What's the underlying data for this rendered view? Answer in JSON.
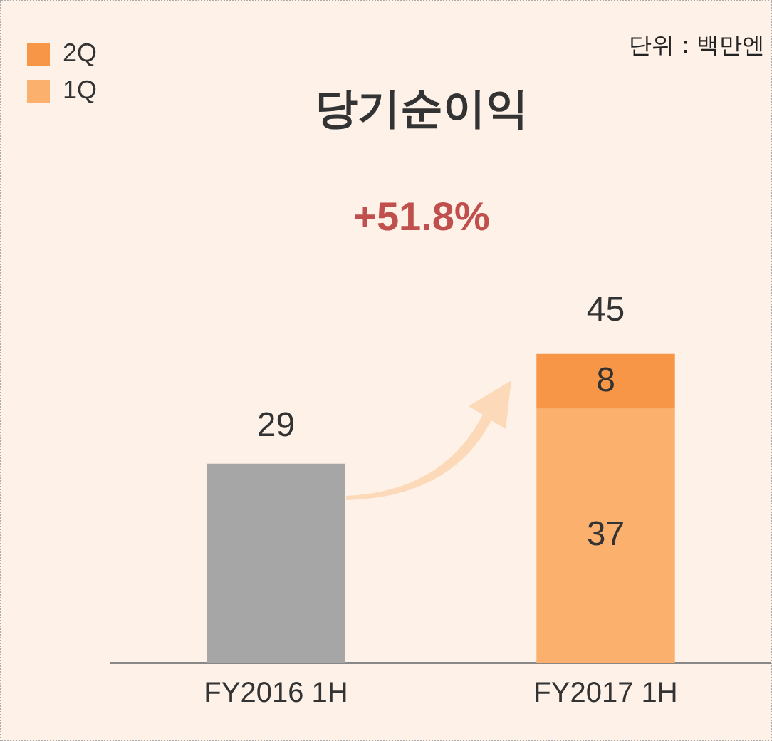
{
  "chart_data": {
    "type": "bar",
    "title": "당기순이익",
    "categories": [
      "FY2016 1H",
      "FY2017 1H"
    ],
    "stacked": true,
    "series": [
      {
        "color": "#a6a6a6",
        "values": [
          29,
          null
        ]
      },
      {
        "name": "1Q",
        "color": "#fbb06e",
        "values": [
          null,
          37
        ]
      },
      {
        "name": "2Q",
        "color": "#f79646",
        "values": [
          null,
          8
        ]
      }
    ],
    "data_labels": true,
    "totals": [
      null,
      "45"
    ],
    "legend": "top left",
    "grid": false,
    "annotations": [
      "단위 : 백만엔",
      "+51.8%"
    ]
  }
}
